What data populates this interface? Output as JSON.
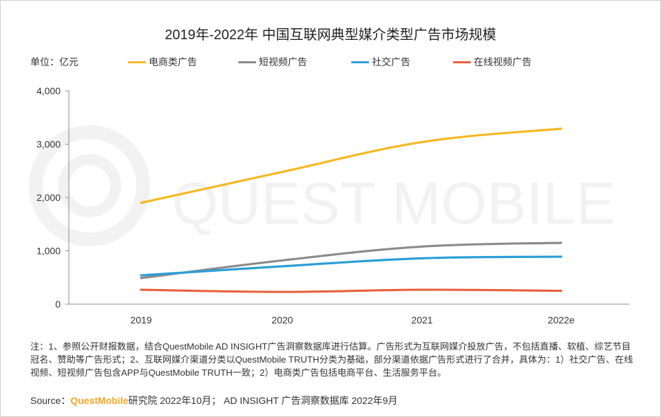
{
  "chart_data": {
    "type": "line",
    "title": "2019年-2022年 中国互联网典型媒介类型广告市场规模",
    "unit_label": "单位：亿元",
    "categories": [
      "2019",
      "2020",
      "2021",
      "2022e"
    ],
    "ylim": [
      0,
      4000
    ],
    "yticks": [
      0,
      1000,
      2000,
      3000,
      4000
    ],
    "ytick_labels": [
      "0",
      "1,000",
      "2,000",
      "3,000",
      "4,000"
    ],
    "series": [
      {
        "name": "电商类广告",
        "color": "#f5b820",
        "values": [
          1900,
          2480,
          3040,
          3290
        ]
      },
      {
        "name": "短视频广告",
        "color": "#8a8a8a",
        "values": [
          490,
          820,
          1080,
          1150
        ]
      },
      {
        "name": "社交广告",
        "color": "#2a9fd6",
        "values": [
          540,
          710,
          860,
          890
        ]
      },
      {
        "name": "在线视频广告",
        "color": "#e8603c",
        "values": [
          270,
          230,
          270,
          250
        ]
      }
    ],
    "watermark": "QUEST MOBILE"
  },
  "footer": {
    "note": "注：1、参照公开财报数据，结合QuestMobile AD INSIGHT广告洞察数据库进行估算。广告形式为互联网媒介投放广告，不包括直播、软植、综艺节目冠名、赞助等广告形式；2、互联网媒介渠道分类以QuestMobile TRUTH分类为基础，部分渠道依据广告形式进行了合并，具体为：1）社交广告、在线视频、短视频广告包含APP与QuestMobile TRUTH一致；2）电商类广告包括电商平台、生活服务平台。",
    "source_label": "Source：",
    "source_brand": "QuestMobile",
    "source_rest": "研究院 2022年10月； AD INSIGHT 广告洞察数据库 2022年9月"
  }
}
